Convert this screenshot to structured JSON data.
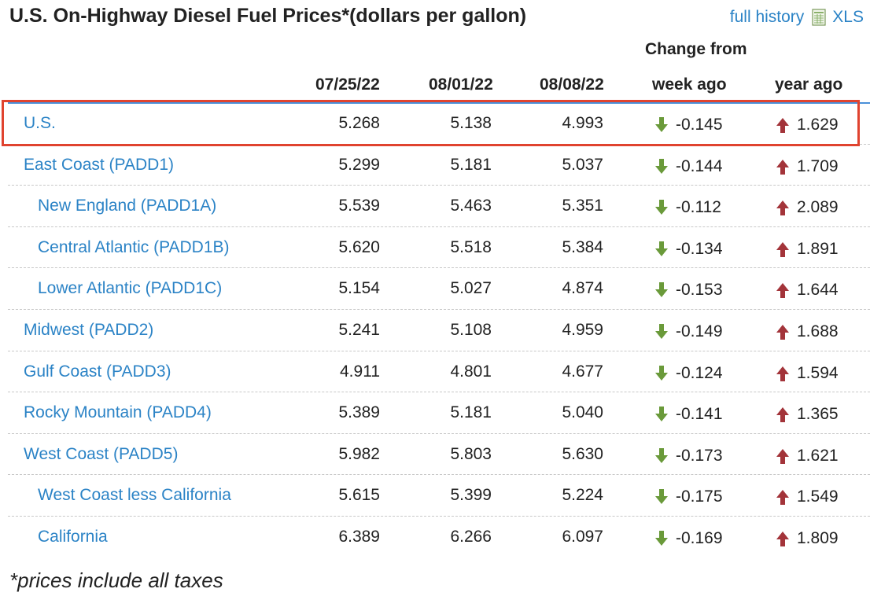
{
  "title": "U.S. On-Highway Diesel Fuel Prices*(dollars per gallon)",
  "links": {
    "full_history": "full history",
    "xls": "XLS",
    "xls_icon": "spreadsheet-icon"
  },
  "columns": {
    "change_from": "Change from",
    "dates": [
      "07/25/22",
      "08/01/22",
      "08/08/22"
    ],
    "week_ago": "week ago",
    "year_ago": "year ago"
  },
  "colors": {
    "link": "#2b83c6",
    "down_arrow": "#6a9a3a",
    "up_arrow": "#a3343a",
    "highlight_box": "#e0432f",
    "header_rule": "#4a90d9"
  },
  "rows": [
    {
      "name": "U.S.",
      "level": 0,
      "v1": "5.268",
      "v2": "5.138",
      "v3": "4.993",
      "week": "-0.145",
      "week_dir": "down",
      "year": "1.629",
      "year_dir": "up",
      "highlighted": true
    },
    {
      "name": "East Coast (PADD1)",
      "level": 0,
      "v1": "5.299",
      "v2": "5.181",
      "v3": "5.037",
      "week": "-0.144",
      "week_dir": "down",
      "year": "1.709",
      "year_dir": "up"
    },
    {
      "name": "New England (PADD1A)",
      "level": 1,
      "v1": "5.539",
      "v2": "5.463",
      "v3": "5.351",
      "week": "-0.112",
      "week_dir": "down",
      "year": "2.089",
      "year_dir": "up"
    },
    {
      "name": "Central Atlantic (PADD1B)",
      "level": 1,
      "v1": "5.620",
      "v2": "5.518",
      "v3": "5.384",
      "week": "-0.134",
      "week_dir": "down",
      "year": "1.891",
      "year_dir": "up"
    },
    {
      "name": "Lower Atlantic (PADD1C)",
      "level": 1,
      "v1": "5.154",
      "v2": "5.027",
      "v3": "4.874",
      "week": "-0.153",
      "week_dir": "down",
      "year": "1.644",
      "year_dir": "up"
    },
    {
      "name": "Midwest (PADD2)",
      "level": 0,
      "v1": "5.241",
      "v2": "5.108",
      "v3": "4.959",
      "week": "-0.149",
      "week_dir": "down",
      "year": "1.688",
      "year_dir": "up"
    },
    {
      "name": "Gulf Coast (PADD3)",
      "level": 0,
      "v1": "4.911",
      "v2": "4.801",
      "v3": "4.677",
      "week": "-0.124",
      "week_dir": "down",
      "year": "1.594",
      "year_dir": "up"
    },
    {
      "name": "Rocky Mountain (PADD4)",
      "level": 0,
      "v1": "5.389",
      "v2": "5.181",
      "v3": "5.040",
      "week": "-0.141",
      "week_dir": "down",
      "year": "1.365",
      "year_dir": "up"
    },
    {
      "name": "West Coast (PADD5)",
      "level": 0,
      "v1": "5.982",
      "v2": "5.803",
      "v3": "5.630",
      "week": "-0.173",
      "week_dir": "down",
      "year": "1.621",
      "year_dir": "up"
    },
    {
      "name": "West Coast less California",
      "level": 1,
      "v1": "5.615",
      "v2": "5.399",
      "v3": "5.224",
      "week": "-0.175",
      "week_dir": "down",
      "year": "1.549",
      "year_dir": "up"
    },
    {
      "name": "California",
      "level": 1,
      "v1": "6.389",
      "v2": "6.266",
      "v3": "6.097",
      "week": "-0.169",
      "week_dir": "down",
      "year": "1.809",
      "year_dir": "up"
    }
  ],
  "footnote": "*prices include all taxes"
}
